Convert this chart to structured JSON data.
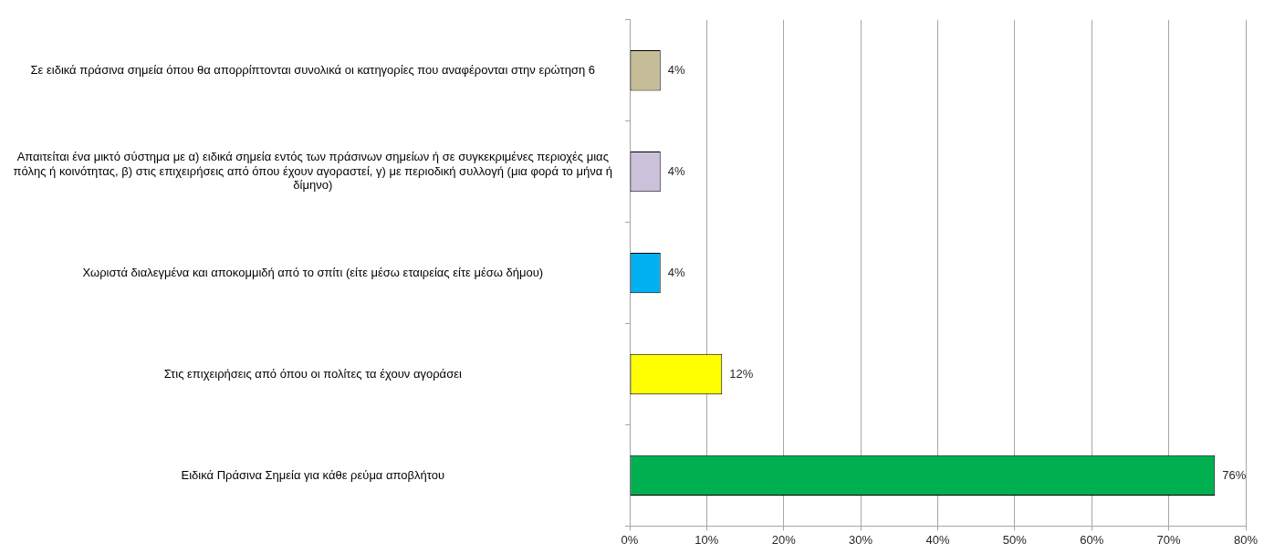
{
  "chart_data": {
    "type": "bar",
    "orientation": "horizontal",
    "categories": [
      "Σε ειδικά πράσινα σημεία όπου θα απορρίπτονται συνολικά οι κατηγορίες που αναφέρονται στην ερώτηση 6",
      "Απαιτείται ένα μικτό σύστημα με α) ειδικά σημεία εντός των πράσινων σημείων ή σε συγκεκριμένες περιοχές μιας πόλης ή κοινότητας, β) στις επιχειρήσεις από όπου έχουν αγοραστεί, γ) με περιοδική συλλογή (μια φορά το μήνα ή δίμηνο)",
      "Χωριστά διαλεγμένα και αποκομμιδή από το σπίτι (είτε μέσω εταιρείας είτε μέσω δήμου)",
      "Στις επιχειρήσεις από όπου οι πολίτες τα έχουν αγοράσει",
      "Ειδικά Πράσινα Σημεία για κάθε ρεύμα αποβλήτου"
    ],
    "values": [
      4,
      4,
      4,
      12,
      76
    ],
    "colors": [
      "#c4bd97",
      "#ccc1da",
      "#00b0f0",
      "#ffff00",
      "#00b050"
    ],
    "value_labels": [
      "4%",
      "4%",
      "4%",
      "12%",
      "76%"
    ],
    "xlim": [
      0,
      80
    ],
    "xticks": [
      {
        "value": 0,
        "label": "0%"
      },
      {
        "value": 10,
        "label": "10%"
      },
      {
        "value": 20,
        "label": "20%"
      },
      {
        "value": 30,
        "label": "30%"
      },
      {
        "value": 40,
        "label": "40%"
      },
      {
        "value": 50,
        "label": "50%"
      },
      {
        "value": 60,
        "label": "60%"
      },
      {
        "value": 70,
        "label": "70%"
      },
      {
        "value": 80,
        "label": "80%"
      }
    ],
    "grid": "x",
    "legend": false
  }
}
